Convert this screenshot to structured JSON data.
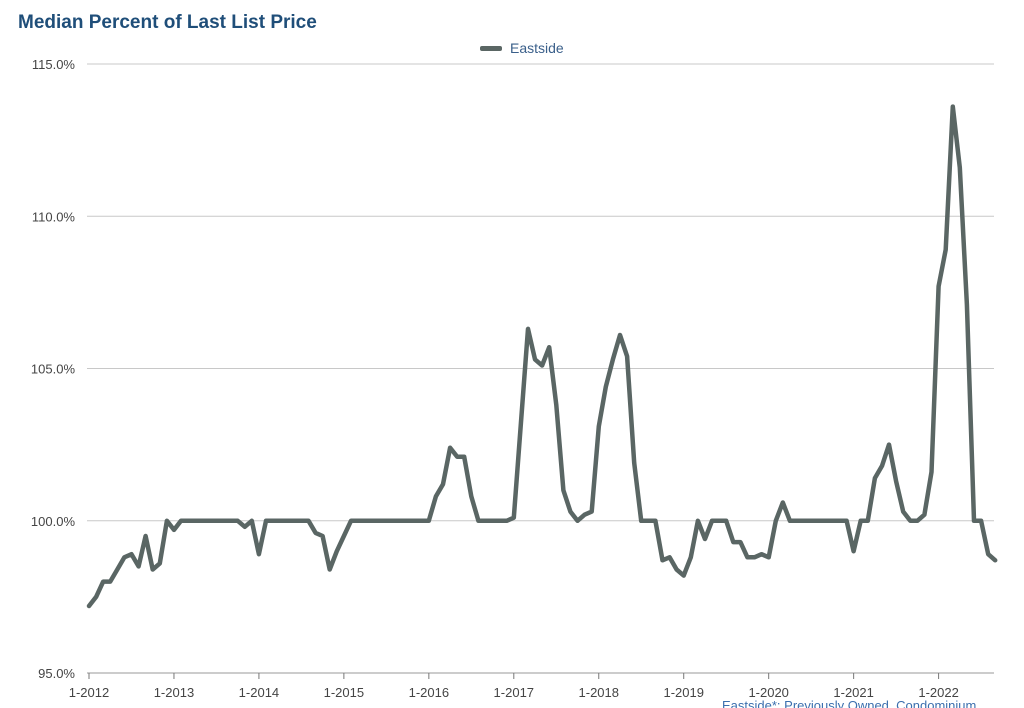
{
  "chart_data": {
    "type": "line",
    "title": "Median Percent of Last List Price",
    "xlabel": "",
    "ylabel": "",
    "ylim": [
      95,
      115
    ],
    "yticks": [
      "95.0%",
      "100.0%",
      "105.0%",
      "110.0%",
      "115.0%"
    ],
    "xticks": [
      "1-2012",
      "1-2013",
      "1-2014",
      "1-2015",
      "1-2016",
      "1-2017",
      "1-2018",
      "1-2019",
      "1-2020",
      "1-2021",
      "1-2022"
    ],
    "grid": true,
    "legend": "top-center",
    "series": [
      {
        "name": "Eastside",
        "color": "#5a6664",
        "values": [
          97.2,
          97.5,
          98.0,
          98.0,
          98.4,
          98.8,
          98.9,
          98.5,
          99.5,
          98.4,
          98.6,
          100.0,
          99.7,
          100.0,
          100.0,
          100.0,
          100.0,
          100.0,
          100.0,
          100.0,
          100.0,
          100.0,
          99.8,
          100.0,
          98.9,
          100.0,
          100.0,
          100.0,
          100.0,
          100.0,
          100.0,
          100.0,
          99.6,
          99.5,
          98.4,
          99.0,
          99.5,
          100.0,
          100.0,
          100.0,
          100.0,
          100.0,
          100.0,
          100.0,
          100.0,
          100.0,
          100.0,
          100.0,
          100.0,
          100.8,
          101.2,
          102.4,
          102.1,
          102.1,
          100.8,
          100.0,
          100.0,
          100.0,
          100.0,
          100.0,
          100.1,
          103.2,
          106.3,
          105.3,
          105.1,
          105.7,
          103.8,
          101.0,
          100.3,
          100.0,
          100.2,
          100.3,
          103.1,
          104.4,
          105.3,
          106.1,
          105.4,
          101.9,
          100.0,
          100.0,
          100.0,
          98.7,
          98.8,
          98.4,
          98.2,
          98.8,
          100.0,
          99.4,
          100.0,
          100.0,
          100.0,
          99.3,
          99.3,
          98.8,
          98.8,
          98.9,
          98.8,
          100.0,
          100.6,
          100.0,
          100.0,
          100.0,
          100.0,
          100.0,
          100.0,
          100.0,
          100.0,
          100.0,
          99.0,
          100.0,
          100.0,
          101.4,
          101.8,
          102.5,
          101.3,
          100.3,
          100.0,
          100.0,
          100.2,
          101.6,
          107.7,
          108.9,
          113.6,
          111.6,
          107.1,
          100.0,
          100.0,
          98.9,
          98.7
        ]
      }
    ]
  },
  "footnote": "Eastside*: Previously Owned, Condominium"
}
